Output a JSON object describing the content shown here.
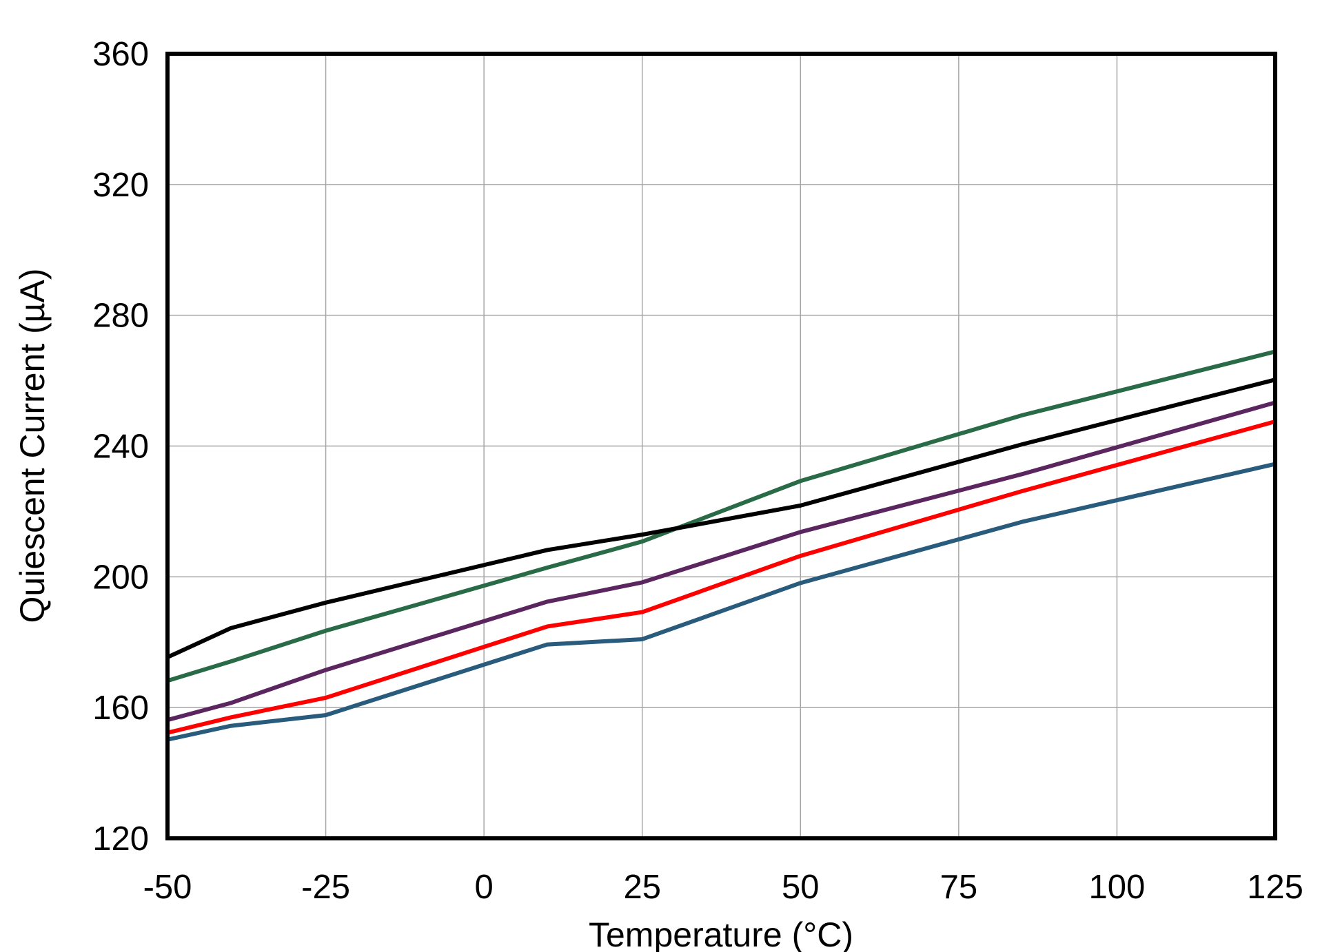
{
  "chart_data": {
    "type": "line",
    "title": "",
    "xlabel": "Temperature (°C)",
    "ylabel": "Quiescent Current (µA)",
    "xlim": [
      -50,
      125
    ],
    "ylim": [
      120,
      360
    ],
    "xticks": [
      -50,
      -25,
      0,
      25,
      50,
      75,
      100,
      125
    ],
    "yticks": [
      120,
      160,
      200,
      240,
      280,
      320,
      360
    ],
    "grid": true,
    "legend": "none",
    "x": [
      -50,
      -40,
      -25,
      10,
      25,
      50,
      85,
      125
    ],
    "series": [
      {
        "color": "#2a6b47",
        "values": [
          168.2,
          174.1,
          183.5,
          202.8,
          210.8,
          229.3,
          249.4,
          268.9
        ]
      },
      {
        "color": "#000000",
        "values": [
          175.4,
          184.3,
          192.1,
          208.2,
          212.9,
          221.8,
          240.5,
          260.3
        ]
      },
      {
        "color": "#5b2660",
        "values": [
          156.2,
          161.4,
          171.5,
          192.4,
          198.3,
          213.7,
          231.4,
          253.3
        ]
      },
      {
        "color": "#ff0000",
        "values": [
          152.3,
          157.0,
          163.0,
          184.8,
          189.2,
          206.4,
          226.2,
          247.5
        ]
      },
      {
        "color": "#285b7c",
        "values": [
          150.2,
          154.4,
          157.7,
          179.3,
          180.9,
          198.1,
          216.8,
          234.5
        ]
      }
    ]
  }
}
